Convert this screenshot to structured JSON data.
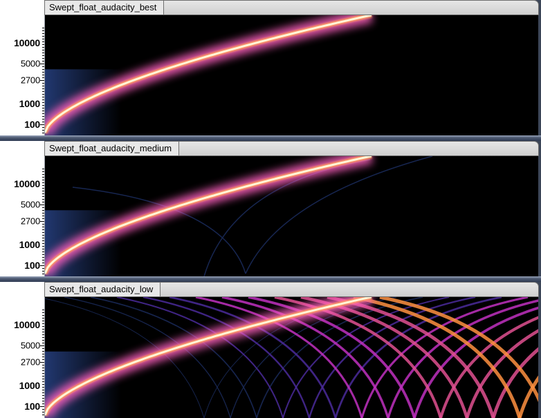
{
  "tracks": [
    {
      "name": "Swept_float_audacity_best",
      "quality": "best",
      "ruler": [
        {
          "label": "10000",
          "bold": true
        },
        {
          "label": "5000",
          "bold": false
        },
        {
          "label": "2700",
          "bold": false
        },
        {
          "label": "1000",
          "bold": true
        },
        {
          "label": "100",
          "bold": true
        }
      ]
    },
    {
      "name": "Swept_float_audacity_medium",
      "quality": "medium",
      "ruler": [
        {
          "label": "10000",
          "bold": true
        },
        {
          "label": "5000",
          "bold": false
        },
        {
          "label": "2700",
          "bold": false
        },
        {
          "label": "1000",
          "bold": true
        },
        {
          "label": "100",
          "bold": true
        }
      ]
    },
    {
      "name": "Swept_float_audacity_low",
      "quality": "low",
      "ruler": [
        {
          "label": "10000",
          "bold": true
        },
        {
          "label": "5000",
          "bold": false
        },
        {
          "label": "2700",
          "bold": false
        },
        {
          "label": "1000",
          "bold": true
        },
        {
          "label": "100",
          "bold": true
        }
      ]
    }
  ],
  "colors": {
    "background": "#000000",
    "sweep_core": "#fff6d8",
    "sweep_glow": "#ff60c0",
    "alias_blue": "#1a2a5a",
    "alias_magenta": "#c030c0",
    "alias_orange": "#ff9040"
  }
}
